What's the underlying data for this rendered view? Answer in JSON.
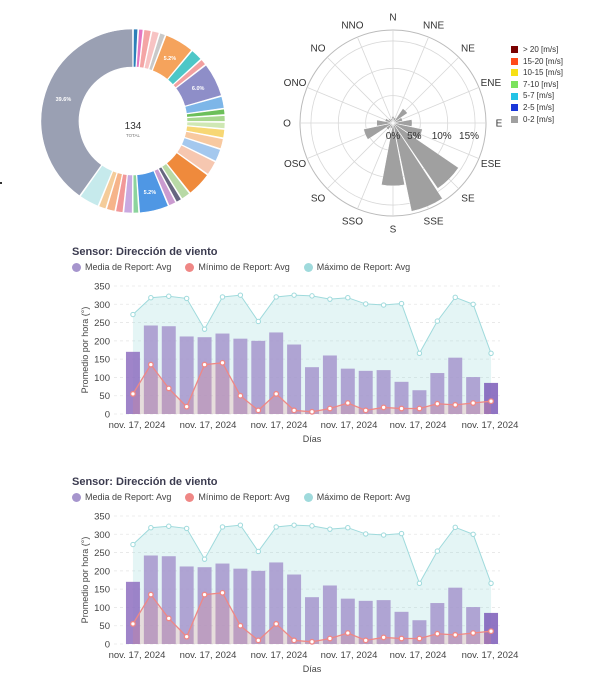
{
  "donut": {
    "center_value": "134",
    "center_label": "TOTAL",
    "slices": [
      {
        "value": 0.9,
        "color": "#2c7fb8",
        "label": ""
      },
      {
        "value": 0.9,
        "color": "#e377c2",
        "label": ""
      },
      {
        "value": 1.4,
        "color": "#f4a5a5",
        "label": ""
      },
      {
        "value": 1.4,
        "color": "#f7c3c3",
        "label": ""
      },
      {
        "value": 1.1,
        "color": "#c9c9c9",
        "label": ""
      },
      {
        "value": 5.2,
        "color": "#f5a35c",
        "label": "5.2%"
      },
      {
        "value": 2.2,
        "color": "#4dc7c7",
        "label": ""
      },
      {
        "value": 1.2,
        "color": "#f2a0a0",
        "label": ""
      },
      {
        "value": 6.0,
        "color": "#8e8ec8",
        "label": "6.0%"
      },
      {
        "value": 2.2,
        "color": "#7db6e8",
        "label": ""
      },
      {
        "value": 1.1,
        "color": "#6cbf5a",
        "label": ""
      },
      {
        "value": 1.2,
        "color": "#a8d88f",
        "label": ""
      },
      {
        "value": 1.2,
        "color": "#cfe8b4",
        "label": ""
      },
      {
        "value": 1.6,
        "color": "#f7d774",
        "label": ""
      },
      {
        "value": 1.9,
        "color": "#f8c9a0",
        "label": ""
      },
      {
        "value": 2.3,
        "color": "#a4c8ee",
        "label": ""
      },
      {
        "value": 2.6,
        "color": "#f6c7b0",
        "label": ""
      },
      {
        "value": 4.4,
        "color": "#ef8a3c",
        "label": ""
      },
      {
        "value": 1.7,
        "color": "#b8d9a6",
        "label": ""
      },
      {
        "value": 1.1,
        "color": "#666680",
        "label": ""
      },
      {
        "value": 1.4,
        "color": "#ca9bd0",
        "label": ""
      },
      {
        "value": 5.2,
        "color": "#4f97e4",
        "label": "5.2%"
      },
      {
        "value": 1.1,
        "color": "#8cd49d",
        "label": ""
      },
      {
        "value": 1.6,
        "color": "#c9a9e0",
        "label": ""
      },
      {
        "value": 1.4,
        "color": "#f19899",
        "label": ""
      },
      {
        "value": 1.6,
        "color": "#f6b48a",
        "label": ""
      },
      {
        "value": 1.4,
        "color": "#f4cc9a",
        "label": ""
      },
      {
        "value": 3.6,
        "color": "#c6eaec",
        "label": ""
      },
      {
        "value": 39.6,
        "color": "#9aa0b3",
        "label": "39.6%"
      }
    ]
  },
  "windrose": {
    "directions": [
      "N",
      "NNE",
      "NE",
      "ENE",
      "E",
      "ESE",
      "SE",
      "SSE",
      "S",
      "SSO",
      "SO",
      "OSO",
      "O",
      "ONO",
      "NO",
      "NNO"
    ],
    "radial_ticks": [
      "0%",
      "5%",
      "10%",
      "15%"
    ],
    "radial_values": [
      0,
      5,
      10,
      15
    ],
    "rmax": 17,
    "values": [
      1.2,
      1.0,
      3.2,
      1.8,
      3.5,
      5.5,
      14.5,
      16.5,
      11.5,
      1.0,
      1.5,
      5.5,
      3.0,
      1.5,
      1.0,
      0.8
    ],
    "bar_color": "#a0a0a0",
    "legend": [
      {
        "label": "> 20 [m/s]",
        "color": "#7a0000"
      },
      {
        "label": "15-20 [m/s]",
        "color": "#ff4a1a"
      },
      {
        "label": "10-15 [m/s]",
        "color": "#f7e016"
      },
      {
        "label": "7-10 [m/s]",
        "color": "#7be35d"
      },
      {
        "label": "5-7 [m/s]",
        "color": "#23c3e6"
      },
      {
        "label": "2-5 [m/s]",
        "color": "#1a37d9"
      },
      {
        "label": "0-2 [m/s]",
        "color": "#a0a0a0"
      }
    ]
  },
  "charts": [
    {
      "title": "Sensor: Dirección de viento",
      "legend": [
        "Media de Report: Avg",
        "Mínimo de Report: Avg",
        "Máximo de Report: Avg"
      ],
      "ylabel": "Promedio por hora (°)",
      "xlabel": "Días",
      "xtick_labels": [
        "nov. 17, 2024",
        "nov. 17, 2024",
        "nov. 17, 2024",
        "nov. 17, 2024",
        "nov. 17, 2024",
        "nov. 17, 2024"
      ]
    },
    {
      "title": "Sensor: Dirección de viento",
      "legend": [
        "Media de Report: Avg",
        "Mínimo de Report: Avg",
        "Máximo de Report: Avg"
      ],
      "ylabel": "Promedio por hora (°)",
      "xlabel": "Días",
      "xtick_labels": [
        "nov. 17, 2024",
        "nov. 17, 2024",
        "nov. 17, 2024",
        "nov. 17, 2024",
        "nov. 17, 2024",
        "nov. 17, 2024"
      ]
    }
  ],
  "chart_data": [
    {
      "type": "bar",
      "yticks": [
        0,
        50,
        100,
        150,
        200,
        250,
        300,
        350
      ],
      "ylim": [
        0,
        350
      ],
      "series": [
        {
          "name": "Media de Report: Avg",
          "values": [
            170,
            242,
            240,
            212,
            210,
            220,
            206,
            200,
            223,
            190,
            128,
            160,
            124,
            118,
            120,
            88,
            65,
            112,
            154,
            101,
            85
          ]
        },
        {
          "name": "Mínimo de Report: Avg",
          "values": [
            55,
            135,
            70,
            20,
            135,
            140,
            50,
            10,
            55,
            10,
            6,
            15,
            30,
            10,
            18,
            15,
            15,
            28,
            25,
            30,
            35
          ]
        },
        {
          "name": "Máximo de Report: Avg",
          "values": [
            272,
            318,
            322,
            316,
            232,
            320,
            325,
            253,
            320,
            325,
            323,
            314,
            318,
            301,
            298,
            302,
            166,
            254,
            319,
            300,
            166
          ]
        }
      ],
      "colors": {
        "mean": "#a695cd",
        "mean_first": "#8e6fbf",
        "mean_last": "#7d5cb8",
        "min": "#ef8785",
        "max": "#9fdadc"
      }
    },
    {
      "type": "bar",
      "yticks": [
        0,
        50,
        100,
        150,
        200,
        250,
        300,
        350
      ],
      "ylim": [
        0,
        350
      ],
      "series": [
        {
          "name": "Media de Report: Avg",
          "values": [
            170,
            242,
            240,
            212,
            210,
            220,
            206,
            200,
            223,
            190,
            128,
            160,
            124,
            118,
            120,
            88,
            65,
            112,
            154,
            101,
            85
          ]
        },
        {
          "name": "Mínimo de Report: Avg",
          "values": [
            55,
            135,
            70,
            20,
            135,
            140,
            50,
            10,
            55,
            10,
            6,
            15,
            30,
            10,
            18,
            15,
            15,
            28,
            25,
            30,
            35
          ]
        },
        {
          "name": "Máximo de Report: Avg",
          "values": [
            272,
            318,
            322,
            316,
            232,
            320,
            325,
            253,
            320,
            325,
            323,
            314,
            318,
            301,
            298,
            302,
            166,
            254,
            319,
            300,
            166
          ]
        }
      ],
      "colors": {
        "mean": "#a695cd",
        "mean_first": "#8e6fbf",
        "mean_last": "#7d5cb8",
        "min": "#ef8785",
        "max": "#9fdadc"
      }
    }
  ]
}
